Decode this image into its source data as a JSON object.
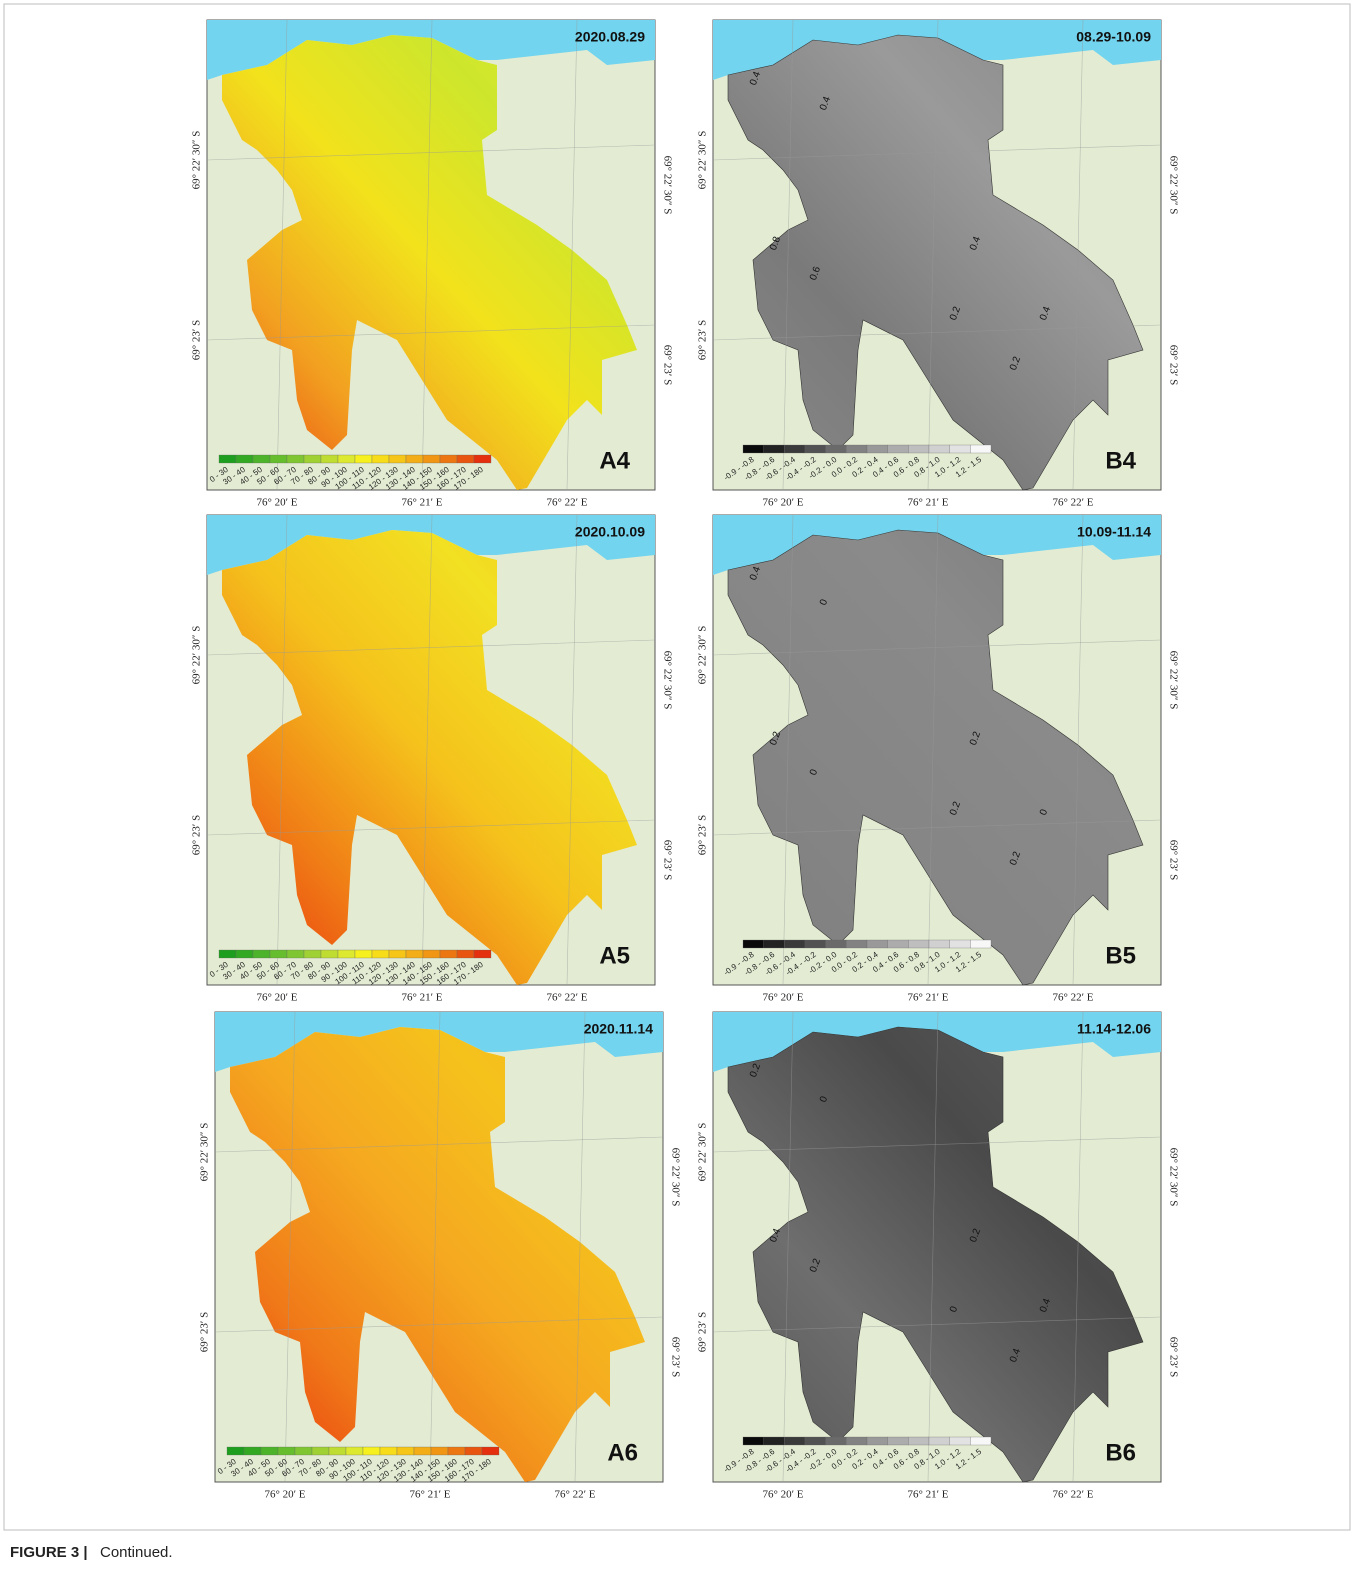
{
  "figure": {
    "caption_label": "FIGURE 3 |",
    "caption_text": "Continued.",
    "lon_labels": [
      "76° 20′ E",
      "76° 21′ E",
      "76° 22′ E"
    ],
    "lat_labels": [
      "69° 22′ 30″ S",
      "69° 23′ S"
    ],
    "legend_a": {
      "classes": [
        "0 - 30",
        "30 - 40",
        "40 - 50",
        "50 - 60",
        "60 - 70",
        "70 - 80",
        "80 - 90",
        "90 - 100",
        "100 - 110",
        "110 - 120",
        "120 - 130",
        "130 - 140",
        "140 - 150",
        "150 - 160",
        "160 - 170",
        "170 - 180"
      ],
      "colors": [
        "#1e9e1e",
        "#33a823",
        "#4db32a",
        "#66bd2e",
        "#80c633",
        "#9fd135",
        "#bfdc33",
        "#dde92e",
        "#f5f01e",
        "#f7dc1a",
        "#f5c518",
        "#f3ad16",
        "#f09514",
        "#ec7612",
        "#e85510",
        "#e4300e"
      ]
    },
    "legend_b": {
      "classes": [
        "-0.9 - -0.8",
        "-0.8 - -0.6",
        "-0.6 - -0.4",
        "-0.4 - -0.2",
        "-0.2 - 0.0",
        "0.0 - 0.2",
        "0.2 - 0.4",
        "0.4 - 0.6",
        "0.6 - 0.8",
        "0.8 - 1.0",
        "1.0 - 1.2",
        "1.2 - 1.5"
      ],
      "colors": [
        "#0a0a0a",
        "#222222",
        "#3a3a3a",
        "#525252",
        "#6a6a6a",
        "#828282",
        "#999999",
        "#acacac",
        "#bebebe",
        "#d0d0d0",
        "#e2e2e2",
        "#f7f7f7"
      ]
    },
    "panels": [
      {
        "id": "A4",
        "date": "2020.08.29",
        "palette": [
          "#e8340f",
          "#f2a020",
          "#f2e21c",
          "#cde62c",
          "#e6ee2a"
        ]
      },
      {
        "id": "B4",
        "date": "08.29-10.09",
        "palette": [
          "#8a8a8a",
          "#7a7a7a",
          "#9a9a9a",
          "#858585"
        ],
        "contours": [
          "0.4",
          "0.4",
          "0.8",
          "0.6",
          "0.2",
          "0.2",
          "0.4",
          "0.4"
        ]
      },
      {
        "id": "A5",
        "date": "2020.10.09",
        "palette": [
          "#e8280c",
          "#f07c16",
          "#f5c21c",
          "#f2e022",
          "#f5c21c"
        ]
      },
      {
        "id": "B5",
        "date": "10.09-11.14",
        "palette": [
          "#7e7e7e",
          "#858585",
          "#8a8a8a",
          "#7a7a7a"
        ],
        "contours": [
          "0.4",
          "0",
          "0.2",
          "0",
          "0.2",
          "0.2",
          "0.2",
          "0"
        ]
      },
      {
        "id": "A6",
        "date": "2020.11.14",
        "palette": [
          "#e8280c",
          "#f07818",
          "#f5a820",
          "#f5c21c",
          "#f5b21c"
        ]
      },
      {
        "id": "B6",
        "date": "11.14-12.06",
        "palette": [
          "#555555",
          "#6e6e6e",
          "#4a4a4a",
          "#5e5e5e"
        ],
        "contours": [
          "0.2",
          "0",
          "0.4",
          "0.2",
          "0",
          "0.4",
          "0.2",
          "0.4"
        ]
      }
    ]
  }
}
